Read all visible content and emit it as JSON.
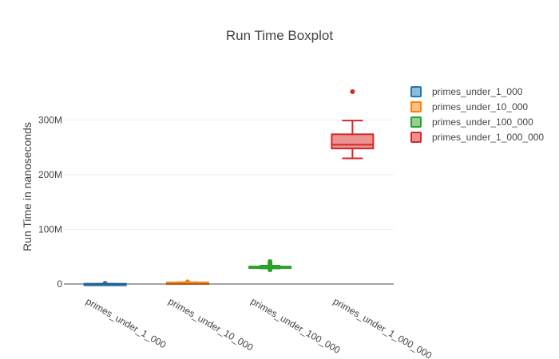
{
  "chart_data": {
    "type": "box",
    "title": "Run Time Boxplot",
    "xlabel": "",
    "ylabel": "Run Time in nanoseconds",
    "ylim": [
      -3000000,
      365000000
    ],
    "yticks": [
      {
        "value": 0,
        "label": "0"
      },
      {
        "value": 100000000,
        "label": "100M"
      },
      {
        "value": 200000000,
        "label": "200M"
      },
      {
        "value": 300000000,
        "label": "300M"
      }
    ],
    "grid": true,
    "legend_position": "right",
    "categories": [
      "primes_under_1_000",
      "primes_under_10_000",
      "primes_under_100_000",
      "primes_under_1_000_000"
    ],
    "series": [
      {
        "name": "primes_under_1_000",
        "color": "#1f77b4",
        "q1": 200000,
        "median": 300000,
        "q3": 400000,
        "whisker_low": 100000,
        "whisker_high": 600000,
        "outliers": [
          1200000
        ]
      },
      {
        "name": "primes_under_10_000",
        "color": "#ff7f0e",
        "q1": 2200000,
        "median": 2500000,
        "q3": 2800000,
        "whisker_low": 1900000,
        "whisker_high": 3300000,
        "outliers": [
          4000000
        ]
      },
      {
        "name": "primes_under_100_000",
        "color": "#2ca02c",
        "q1": 30000000,
        "median": 31000000,
        "q3": 32000000,
        "whisker_low": 28500000,
        "whisker_high": 33500000,
        "outliers": [
          26000000,
          36000000,
          38500000,
          41000000
        ]
      },
      {
        "name": "primes_under_1_000_000",
        "color": "#d62728",
        "q1": 248000000,
        "median": 255000000,
        "q3": 274000000,
        "whisker_low": 230000000,
        "whisker_high": 299000000,
        "outliers": [
          352000000
        ]
      }
    ]
  }
}
